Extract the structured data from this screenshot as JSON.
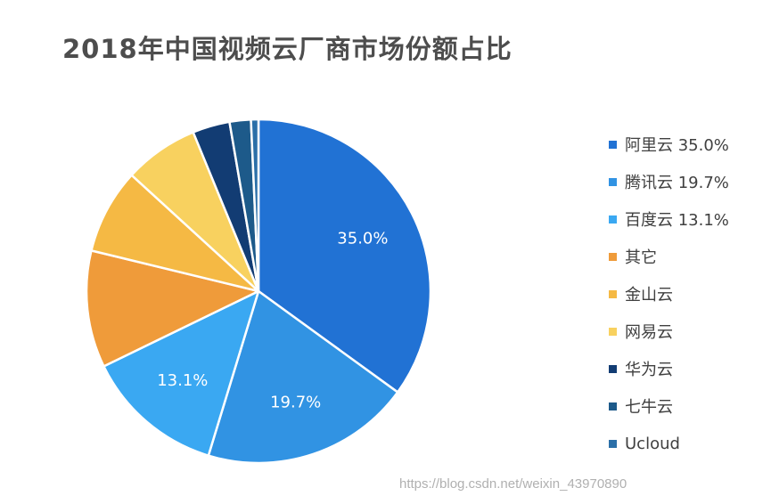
{
  "watermark_url": "https://blog.csdn.net/weixin_43970890",
  "chart_data": {
    "type": "pie",
    "title": "2018年中国视频云厂商市场份额占比",
    "slices": [
      {
        "label": "阿里云",
        "legend": "阿里云 35.0%",
        "value": 35.0,
        "data_label": "35.0%",
        "color": "#2172d4"
      },
      {
        "label": "腾讯云",
        "legend": "腾讯云 19.7%",
        "value": 19.7,
        "data_label": "19.7%",
        "color": "#3193e3"
      },
      {
        "label": "百度云",
        "legend": "百度云 13.1%",
        "value": 13.1,
        "data_label": "13.1%",
        "color": "#3aa8f2"
      },
      {
        "label": "其它",
        "legend": "其它",
        "value": 11.0,
        "data_label": "",
        "color": "#ef9b3a"
      },
      {
        "label": "金山云",
        "legend": "金山云",
        "value": 8.0,
        "data_label": "",
        "color": "#f5b944"
      },
      {
        "label": "网易云",
        "legend": "网易云",
        "value": 7.0,
        "data_label": "",
        "color": "#f8d15f"
      },
      {
        "label": "华为云",
        "legend": "华为云",
        "value": 3.5,
        "data_label": "",
        "color": "#123c73"
      },
      {
        "label": "七牛云",
        "legend": "七牛云",
        "value": 2.0,
        "data_label": "",
        "color": "#1d5a8a"
      },
      {
        "label": "Ucloud",
        "legend": "Ucloud",
        "value": 0.7,
        "data_label": "",
        "color": "#2b6fa8"
      }
    ]
  }
}
